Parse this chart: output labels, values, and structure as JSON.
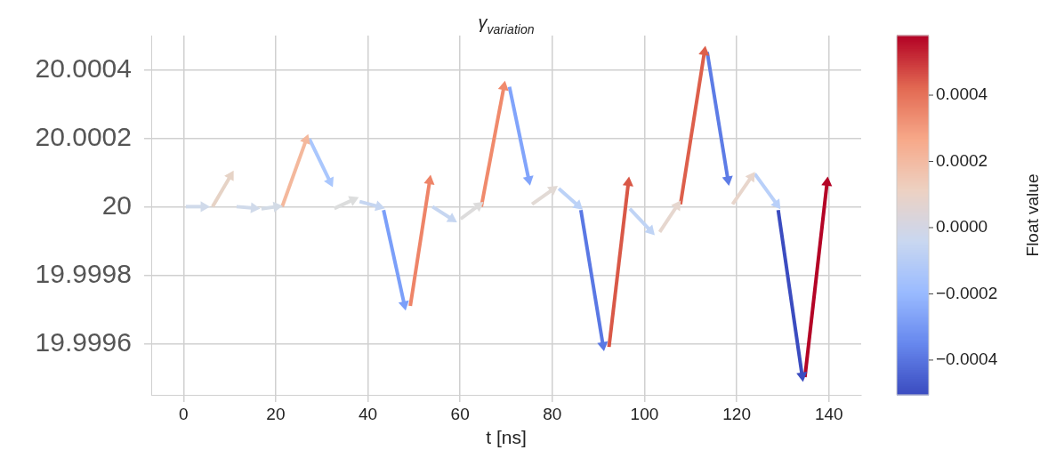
{
  "chart_data": {
    "type": "line",
    "title": "γ$_{variation}$",
    "xlabel": "t [ns]",
    "clabel": "Float value",
    "xlim": [
      -7,
      147
    ],
    "xticks": [
      0,
      20,
      40,
      60,
      80,
      100,
      120,
      140
    ],
    "ylim": [
      19.99945,
      20.0005
    ],
    "yticks": [
      19.9996,
      19.9998,
      20,
      20.0002,
      20.0004
    ],
    "clim": [
      -0.000505,
      0.00058
    ],
    "cticks": [
      {
        "value": -0.0004,
        "label": "−0.0004"
      },
      {
        "value": -0.0002,
        "label": "−0.0002"
      },
      {
        "value": 0,
        "label": "0.0000"
      },
      0.0002,
      0.0004
    ],
    "grid": true,
    "marker": "triangle",
    "legend": false,
    "series": [
      {
        "color": "#d0daea",
        "x": [
          0.5,
          4.4
        ],
        "values": [
          20.0,
          20.0
        ]
      },
      {
        "color": "#e6d3c6",
        "x": [
          6.3,
          10.2
        ],
        "values": [
          20.0,
          20.00009
        ]
      },
      {
        "color": "#d0daea",
        "x": [
          11.5,
          15.3
        ],
        "values": [
          20.0,
          19.999996
        ]
      },
      {
        "color": "#d3dbe6",
        "x": [
          16.9,
          20.2
        ],
        "values": [
          19.999994,
          20.0
        ]
      },
      {
        "color": "#f4b89c",
        "x": [
          21.4,
          26.6
        ],
        "values": [
          20.0,
          20.000195
        ]
      },
      {
        "color": "#aac7fd",
        "x": [
          27.3,
          31.8
        ],
        "values": [
          20.000198,
          20.000073
        ]
      },
      {
        "color": "#dcdddd",
        "x": [
          32.7,
          36.8
        ],
        "values": [
          19.999995,
          20.00002
        ]
      },
      {
        "color": "#c6d6f1",
        "x": [
          38.2,
          42.4
        ],
        "values": [
          20.000015,
          20.0
        ]
      },
      {
        "color": "#7b9ff9",
        "x": [
          43.4,
          47.9
        ],
        "values": [
          19.99999,
          19.999714
        ]
      },
      {
        "color": "#ee8468",
        "x": [
          49.2,
          53.4
        ],
        "values": [
          19.99971,
          20.000075
        ]
      },
      {
        "color": "#c6d6f1",
        "x": [
          54.0,
          58.2
        ],
        "values": [
          20.0,
          19.999964
        ]
      },
      {
        "color": "#dddcdc",
        "x": [
          60.1,
          64.0
        ],
        "values": [
          19.999964,
          20.000003
        ]
      },
      {
        "color": "#f08a6c",
        "x": [
          64.6,
          69.5
        ],
        "values": [
          20.0,
          20.00035
        ]
      },
      {
        "color": "#81a4fb",
        "x": [
          70.7,
          74.9
        ],
        "values": [
          20.00035,
          20.000079
        ]
      },
      {
        "color": "#e2dad5",
        "x": [
          75.6,
          80.1
        ],
        "values": [
          20.000007,
          20.00005
        ]
      },
      {
        "color": "#bcd2f7",
        "x": [
          81.4,
          85.6
        ],
        "values": [
          20.000053,
          20.000003
        ]
      },
      {
        "color": "#5a78e4",
        "x": [
          86.2,
          91.0
        ],
        "values": [
          19.99999,
          19.999595
        ]
      },
      {
        "color": "#d95847",
        "x": [
          92.3,
          96.5
        ],
        "values": [
          19.99959,
          20.00007
        ]
      },
      {
        "color": "#c0d4f5",
        "x": [
          96.8,
          101.3
        ],
        "values": [
          19.999994,
          19.99993
        ]
      },
      {
        "color": "#e6d7cf",
        "x": [
          103.3,
          107.1
        ],
        "values": [
          19.999926,
          20.000003
        ]
      },
      {
        "color": "#dd5f4b",
        "x": [
          107.8,
          113.0
        ],
        "values": [
          20.000007,
          20.000452
        ]
      },
      {
        "color": "#5d7ce6",
        "x": [
          113.6,
          118.1
        ],
        "values": [
          20.000452,
          20.000079
        ]
      },
      {
        "color": "#e8d6cc",
        "x": [
          119.1,
          123.2
        ],
        "values": [
          20.000007,
          20.000087
        ]
      },
      {
        "color": "#b9d0f9",
        "x": [
          123.9,
          128.7
        ],
        "values": [
          20.000096,
          20.000007
        ]
      },
      {
        "color": "#3b4cc0",
        "x": [
          129.0,
          134.2
        ],
        "values": [
          19.99999,
          19.999506
        ]
      },
      {
        "color": "#b40426",
        "x": [
          134.8,
          139.6
        ],
        "values": [
          19.999502,
          20.00007
        ]
      }
    ]
  }
}
